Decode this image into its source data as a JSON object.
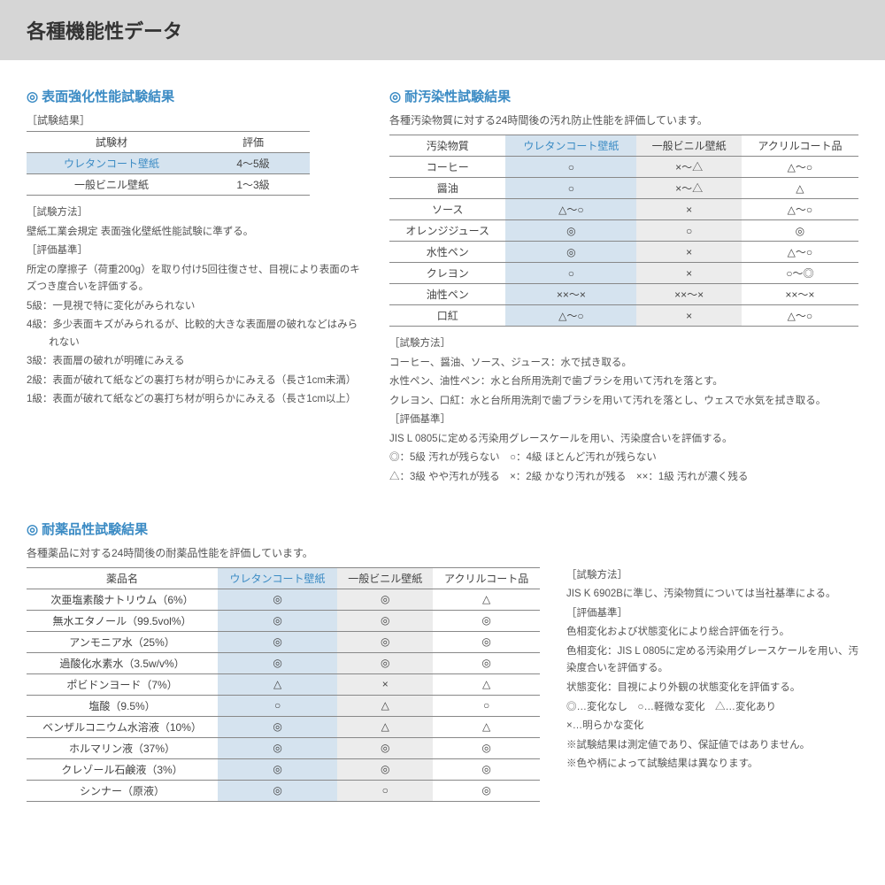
{
  "pageTitle": "各種機能性データ",
  "s1": {
    "title": "表面強化性能試験結果",
    "resultLabel": "［試験結果］",
    "headers": [
      "試験材",
      "評価"
    ],
    "rows": [
      {
        "name": "ウレタンコート壁紙",
        "val": "4～5級",
        "hl": true
      },
      {
        "name": "一般ビニル壁紙",
        "val": "1～3級",
        "hl": false
      }
    ],
    "methodLabel": "［試験方法］",
    "methodText": "壁紙工業会規定 表面強化壁紙性能試験に準ずる。",
    "criteriaLabel": "［評価基準］",
    "criteriaText": "所定の摩擦子（荷重200g）を取り付け5回往復させ、目視により表面のキズつき度合いを評価する。",
    "grades": [
      "5級：一見視で特に変化がみられない",
      "4級：多少表面キズがみられるが、比較的大きな表面層の破れなどはみられない",
      "3級：表面層の破れが明確にみえる",
      "2級：表面が破れて紙などの裏打ち材が明らかにみえる（長さ1cm未満）",
      "1級：表面が破れて紙などの裏打ち材が明らかにみえる（長さ1cm以上）"
    ]
  },
  "s2": {
    "title": "耐汚染性試験結果",
    "desc": "各種汚染物質に対する24時間後の汚れ防止性能を評価しています。",
    "headers": [
      "汚染物質",
      "ウレタンコート壁紙",
      "一般ビニル壁紙",
      "アクリルコート品"
    ],
    "rows": [
      [
        "コーヒー",
        "○",
        "×～△",
        "△～○"
      ],
      [
        "醤油",
        "○",
        "×～△",
        "△"
      ],
      [
        "ソース",
        "△～○",
        "×",
        "△～○"
      ],
      [
        "オレンジジュース",
        "◎",
        "○",
        "◎"
      ],
      [
        "水性ペン",
        "◎",
        "×",
        "△～○"
      ],
      [
        "クレヨン",
        "○",
        "×",
        "○～◎"
      ],
      [
        "油性ペン",
        "××～×",
        "××～×",
        "××～×"
      ],
      [
        "口紅",
        "△～○",
        "×",
        "△～○"
      ]
    ],
    "methodLabel": "［試験方法］",
    "method": [
      "コーヒー、醤油、ソース、ジュース：水で拭き取る。",
      "水性ペン、油性ペン：水と台所用洗剤で歯ブラシを用いて汚れを落とす。",
      "クレヨン、口紅：水と台所用洗剤で歯ブラシを用いて汚れを落とし、ウェスで水気を拭き取る。"
    ],
    "criteriaLabel": "［評価基準］",
    "criteria": [
      "JIS L 0805に定める汚染用グレースケールを用い、汚染度合いを評価する。",
      "◎：5級 汚れが残らない　○：4級 ほとんど汚れが残らない",
      "△：3級 やや汚れが残る　×：2級 かなり汚れが残る　××：1級 汚れが濃く残る"
    ]
  },
  "s3": {
    "title": "耐薬品性試験結果",
    "desc": "各種薬品に対する24時間後の耐薬品性能を評価しています。",
    "headers": [
      "薬品名",
      "ウレタンコート壁紙",
      "一般ビニル壁紙",
      "アクリルコート品"
    ],
    "rows": [
      [
        "次亜塩素酸ナトリウム（6%）",
        "◎",
        "◎",
        "△"
      ],
      [
        "無水エタノール（99.5vol%）",
        "◎",
        "◎",
        "◎"
      ],
      [
        "アンモニア水（25%）",
        "◎",
        "◎",
        "◎"
      ],
      [
        "過酸化水素水（3.5w/v%）",
        "◎",
        "◎",
        "◎"
      ],
      [
        "ポビドンヨード（7%）",
        "△",
        "×",
        "△"
      ],
      [
        "塩酸（9.5%）",
        "○",
        "△",
        "○"
      ],
      [
        "ベンザルコニウム水溶液（10%）",
        "◎",
        "△",
        "△"
      ],
      [
        "ホルマリン液（37%）",
        "◎",
        "◎",
        "◎"
      ],
      [
        "クレゾール石鹸液（3%）",
        "◎",
        "◎",
        "◎"
      ],
      [
        "シンナー（原液）",
        "◎",
        "○",
        "◎"
      ]
    ],
    "methodLabel": "［試験方法］",
    "methodText": "JIS K 6902Bに準じ、汚染物質については当社基準による。",
    "criteriaLabel": "［評価基準］",
    "criteria": [
      "色相変化および状態変化により総合評価を行う。",
      "色相変化：JIS L 0805に定める汚染用グレースケールを用い、汚染度合いを評価する。",
      "状態変化：目視により外観の状態変化を評価する。",
      "◎…変化なし　○…軽微な変化　△…変化あり",
      "×…明らかな変化",
      "※試験結果は測定値であり、保証値ではありません。",
      "※色や柄によって試験結果は異なります。"
    ]
  }
}
